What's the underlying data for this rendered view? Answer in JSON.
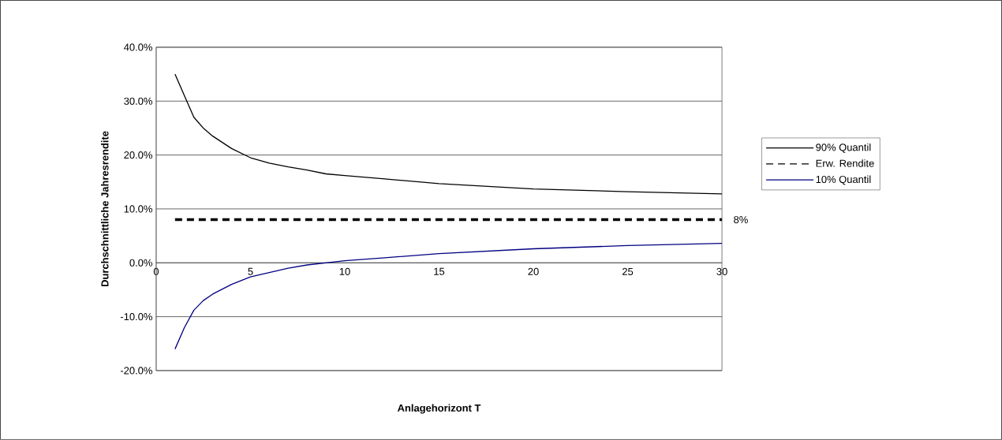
{
  "chart_data": {
    "type": "line",
    "xlabel": "Anlagehorizont T",
    "ylabel": "Durchschnittliche Jahresrendite",
    "series": [
      {
        "name": "90% Quantil",
        "color": "#000000",
        "line_style": "solid",
        "x": [
          1,
          1.5,
          2,
          2.5,
          3,
          4,
          5,
          6,
          7,
          8,
          9,
          10,
          12,
          15,
          20,
          25,
          30
        ],
        "values": [
          35.0,
          31.0,
          27.0,
          25.0,
          23.5,
          21.2,
          19.5,
          18.5,
          17.8,
          17.2,
          16.5,
          16.2,
          15.6,
          14.7,
          13.7,
          13.2,
          12.8
        ]
      },
      {
        "name": "Erw. Rendite",
        "color": "#000000",
        "line_style": "dashed",
        "x": [
          1,
          30
        ],
        "values": [
          8,
          8
        ]
      },
      {
        "name": "10% Quantil",
        "color": "#000080",
        "line_style": "solid",
        "x": [
          1,
          1.5,
          2,
          2.5,
          3,
          4,
          5,
          6,
          7,
          8,
          9,
          10,
          12,
          15,
          20,
          25,
          30
        ],
        "values": [
          -16.0,
          -12.0,
          -8.8,
          -7.0,
          -5.8,
          -4.0,
          -2.6,
          -1.8,
          -1.0,
          -0.4,
          0.0,
          0.4,
          0.9,
          1.7,
          2.6,
          3.2,
          3.6
        ]
      }
    ],
    "annotations": [
      {
        "text": "8%",
        "x": 30,
        "y": 8
      }
    ],
    "xlim": [
      0,
      30
    ],
    "xticks": [
      0,
      5,
      10,
      15,
      20,
      25,
      30
    ],
    "ylim": [
      -20,
      40
    ],
    "yticks": [
      {
        "value": -20,
        "label": "-20.0%"
      },
      {
        "value": -10,
        "label": "-10.0%"
      },
      {
        "value": 0,
        "label": "0.0%"
      },
      {
        "value": 10,
        "label": "10.0%"
      },
      {
        "value": 20,
        "label": "20.0%"
      },
      {
        "value": 30,
        "label": "30.0%"
      },
      {
        "value": 40,
        "label": "40.0%"
      }
    ],
    "grid": "y",
    "legend": "right",
    "marker": "none"
  }
}
